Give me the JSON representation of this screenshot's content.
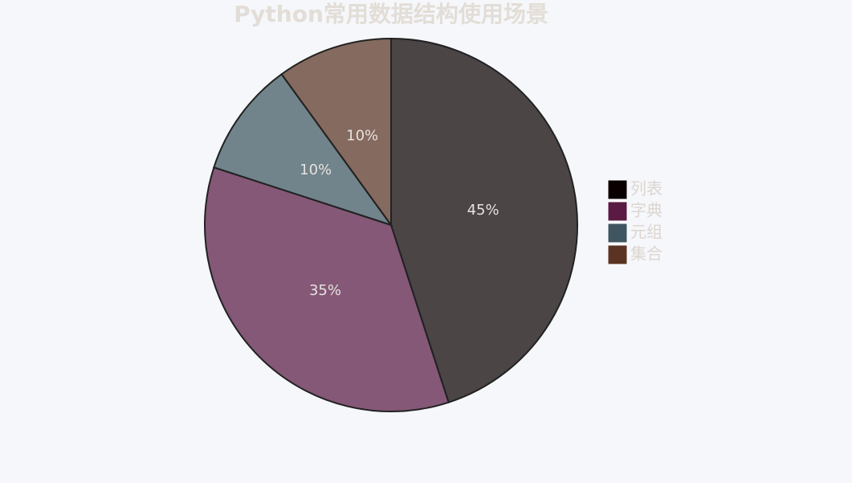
{
  "chart_data": {
    "type": "pie",
    "title": "Python常用数据结构使用场景",
    "categories": [
      "列表",
      "字典",
      "元组",
      "集合"
    ],
    "values": [
      45,
      35,
      10,
      10
    ],
    "value_labels": [
      "45%",
      "35%",
      "10%",
      "10%"
    ],
    "colors": [
      "#0a0000",
      "#5a1a44",
      "#3f5660",
      "#5a3322"
    ],
    "legend": "right"
  }
}
